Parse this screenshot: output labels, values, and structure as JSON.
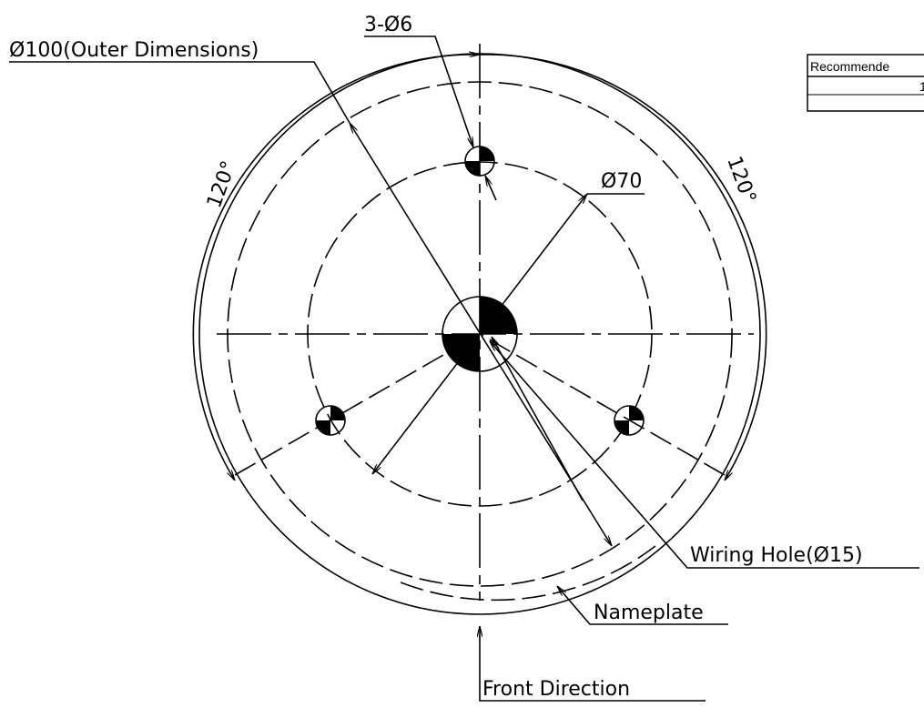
{
  "drawing": {
    "labels": {
      "outer": "Ø100(Outer Dimensions)",
      "holes": "3-Ø6",
      "bolt_circle": "Ø70",
      "angle_left": "120°",
      "angle_right": "120°",
      "wiring": "Wiring Hole(Ø15)",
      "nameplate": "Nameplate",
      "front": "Front Direction"
    },
    "table": {
      "header": "Recommende",
      "value": "1"
    }
  }
}
